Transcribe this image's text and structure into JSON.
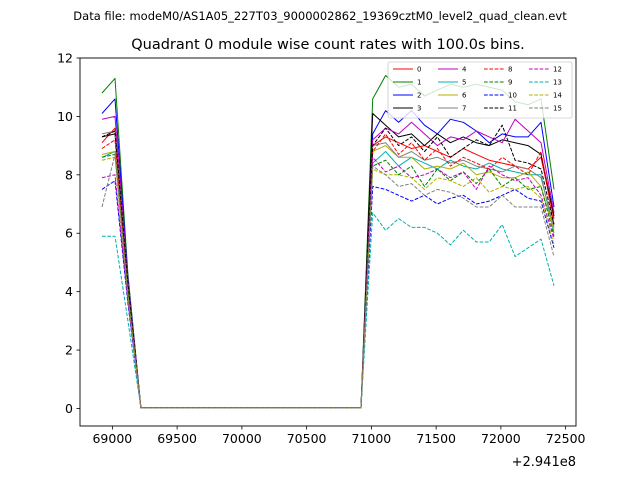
{
  "chart_data": {
    "type": "line",
    "suptitle": "Data file: modeM0/AS1A05_227T03_9000002862_19369cztM0_level2_quad_clean.evt",
    "title": "Quadrant 0 module wise count rates with 100.0s bins.",
    "xlabel": "",
    "ylabel": "",
    "offset_text": "+2.941e8",
    "xlim": [
      68750,
      72580
    ],
    "ylim": [
      -0.6,
      12
    ],
    "xticks": [
      69000,
      69500,
      70000,
      70500,
      71000,
      71500,
      72000,
      72500
    ],
    "xtick_labels": [
      "69000",
      "69500",
      "70000",
      "70500",
      "71000",
      "71500",
      "72000",
      "72500"
    ],
    "yticks": [
      0,
      2,
      4,
      6,
      8,
      10,
      12
    ],
    "ytick_labels": [
      "0",
      "2",
      "4",
      "6",
      "8",
      "10",
      "12"
    ],
    "legend_position": "top-right",
    "x": [
      68920,
      69020,
      69120,
      69220,
      69320,
      69420,
      69520,
      69620,
      69720,
      69820,
      69920,
      70020,
      70120,
      70220,
      70320,
      70420,
      70520,
      70620,
      70720,
      70820,
      70920,
      71010,
      71110,
      71210,
      71310,
      71410,
      71510,
      71610,
      71710,
      71810,
      71910,
      72010,
      72110,
      72210,
      72310,
      72410
    ],
    "series": [
      {
        "name": "0",
        "color": "#ff0000",
        "dash": "solid",
        "values": [
          9.1,
          9.6,
          4.2,
          0.02,
          0.02,
          0.02,
          0.02,
          0.02,
          0.02,
          0.02,
          0.02,
          0.02,
          0.02,
          0.02,
          0.02,
          0.02,
          0.02,
          0.02,
          0.02,
          0.02,
          0.02,
          9.0,
          9.3,
          9.1,
          8.9,
          9.0,
          8.8,
          8.6,
          8.9,
          8.7,
          8.5,
          8.4,
          8.3,
          8.2,
          8.6,
          6.5
        ]
      },
      {
        "name": "1",
        "color": "#008000",
        "dash": "solid",
        "values": [
          10.8,
          11.3,
          4.6,
          0.02,
          0.02,
          0.02,
          0.02,
          0.02,
          0.02,
          0.02,
          0.02,
          0.02,
          0.02,
          0.02,
          0.02,
          0.02,
          0.02,
          0.02,
          0.02,
          0.02,
          0.02,
          10.6,
          11.4,
          11.0,
          11.1,
          10.7,
          10.9,
          11.1,
          11.0,
          11.1,
          11.0,
          10.9,
          10.5,
          10.4,
          10.6,
          7.5
        ]
      },
      {
        "name": "2",
        "color": "#0000ff",
        "dash": "solid",
        "values": [
          10.1,
          10.6,
          4.5,
          0.02,
          0.02,
          0.02,
          0.02,
          0.02,
          0.02,
          0.02,
          0.02,
          0.02,
          0.02,
          0.02,
          0.02,
          0.02,
          0.02,
          0.02,
          0.02,
          0.02,
          0.02,
          9.4,
          10.2,
          9.8,
          10.2,
          9.7,
          9.4,
          9.9,
          9.8,
          9.5,
          9.1,
          9.4,
          9.3,
          9.3,
          9.8,
          6.9
        ]
      },
      {
        "name": "3",
        "color": "#000000",
        "dash": "solid",
        "values": [
          9.3,
          9.4,
          4.2,
          0.02,
          0.02,
          0.02,
          0.02,
          0.02,
          0.02,
          0.02,
          0.02,
          0.02,
          0.02,
          0.02,
          0.02,
          0.02,
          0.02,
          0.02,
          0.02,
          0.02,
          0.02,
          10.1,
          9.7,
          9.3,
          9.4,
          9.0,
          9.4,
          9.1,
          9.3,
          9.1,
          9.0,
          9.2,
          9.1,
          9.0,
          8.7,
          6.6
        ]
      },
      {
        "name": "4",
        "color": "#c000c0",
        "dash": "solid",
        "values": [
          9.9,
          10.0,
          4.4,
          0.02,
          0.02,
          0.02,
          0.02,
          0.02,
          0.02,
          0.02,
          0.02,
          0.02,
          0.02,
          0.02,
          0.02,
          0.02,
          0.02,
          0.02,
          0.02,
          0.02,
          0.02,
          9.2,
          9.6,
          9.4,
          9.8,
          9.4,
          9.0,
          9.3,
          9.2,
          9.5,
          9.3,
          9.1,
          9.9,
          9.5,
          9.1,
          6.7
        ]
      },
      {
        "name": "5",
        "color": "#00b0b0",
        "dash": "solid",
        "values": [
          8.6,
          8.8,
          4.0,
          0.02,
          0.02,
          0.02,
          0.02,
          0.02,
          0.02,
          0.02,
          0.02,
          0.02,
          0.02,
          0.02,
          0.02,
          0.02,
          0.02,
          0.02,
          0.02,
          0.02,
          0.02,
          8.4,
          8.8,
          8.3,
          8.6,
          8.4,
          8.2,
          8.5,
          8.3,
          8.2,
          8.4,
          8.2,
          8.1,
          8.0,
          8.0,
          6.0
        ]
      },
      {
        "name": "6",
        "color": "#b0b000",
        "dash": "solid",
        "values": [
          8.7,
          8.8,
          4.0,
          0.02,
          0.02,
          0.02,
          0.02,
          0.02,
          0.02,
          0.02,
          0.02,
          0.02,
          0.02,
          0.02,
          0.02,
          0.02,
          0.02,
          0.02,
          0.02,
          0.02,
          0.02,
          8.8,
          9.0,
          8.6,
          8.6,
          8.2,
          8.3,
          8.2,
          8.4,
          8.0,
          8.1,
          7.9,
          7.9,
          8.1,
          7.6,
          6.1
        ]
      },
      {
        "name": "7",
        "color": "#808080",
        "dash": "solid",
        "values": [
          9.4,
          9.5,
          4.3,
          0.02,
          0.02,
          0.02,
          0.02,
          0.02,
          0.02,
          0.02,
          0.02,
          0.02,
          0.02,
          0.02,
          0.02,
          0.02,
          0.02,
          0.02,
          0.02,
          0.02,
          0.02,
          9.0,
          9.1,
          8.6,
          8.8,
          8.5,
          8.6,
          8.4,
          8.5,
          8.3,
          8.2,
          8.1,
          8.3,
          8.2,
          7.9,
          6.2
        ]
      },
      {
        "name": "8",
        "color": "#ff0000",
        "dash": "dashed",
        "values": [
          8.9,
          9.2,
          4.1,
          0.02,
          0.02,
          0.02,
          0.02,
          0.02,
          0.02,
          0.02,
          0.02,
          0.02,
          0.02,
          0.02,
          0.02,
          0.02,
          0.02,
          0.02,
          0.02,
          0.02,
          0.02,
          8.8,
          9.4,
          8.7,
          9.1,
          8.5,
          8.9,
          8.3,
          8.6,
          8.4,
          8.2,
          8.6,
          8.3,
          8.0,
          8.8,
          6.3
        ]
      },
      {
        "name": "9",
        "color": "#008000",
        "dash": "dashed",
        "values": [
          8.6,
          8.7,
          4.0,
          0.02,
          0.02,
          0.02,
          0.02,
          0.02,
          0.02,
          0.02,
          0.02,
          0.02,
          0.02,
          0.02,
          0.02,
          0.02,
          0.02,
          0.02,
          0.02,
          0.02,
          0.02,
          8.3,
          8.5,
          8.0,
          8.3,
          7.6,
          8.2,
          7.8,
          8.1,
          7.7,
          8.2,
          7.6,
          7.9,
          7.5,
          7.6,
          5.9
        ]
      },
      {
        "name": "10",
        "color": "#0000ff",
        "dash": "dashed",
        "values": [
          7.5,
          7.8,
          3.6,
          0.02,
          0.02,
          0.02,
          0.02,
          0.02,
          0.02,
          0.02,
          0.02,
          0.02,
          0.02,
          0.02,
          0.02,
          0.02,
          0.02,
          0.02,
          0.02,
          0.02,
          0.02,
          7.6,
          7.5,
          7.3,
          7.1,
          7.3,
          7.0,
          7.2,
          7.3,
          7.0,
          7.1,
          7.3,
          7.5,
          7.2,
          7.1,
          5.5
        ]
      },
      {
        "name": "11",
        "color": "#000000",
        "dash": "dashed",
        "values": [
          9.3,
          9.5,
          4.3,
          0.02,
          0.02,
          0.02,
          0.02,
          0.02,
          0.02,
          0.02,
          0.02,
          0.02,
          0.02,
          0.02,
          0.02,
          0.02,
          0.02,
          0.02,
          0.02,
          0.02,
          0.02,
          9.0,
          9.6,
          9.0,
          9.3,
          8.8,
          9.3,
          8.6,
          8.9,
          9.2,
          9.0,
          9.7,
          8.5,
          8.4,
          8.2,
          6.3
        ]
      },
      {
        "name": "12",
        "color": "#c000c0",
        "dash": "dashed",
        "values": [
          7.9,
          8.0,
          3.7,
          0.02,
          0.02,
          0.02,
          0.02,
          0.02,
          0.02,
          0.02,
          0.02,
          0.02,
          0.02,
          0.02,
          0.02,
          0.02,
          0.02,
          0.02,
          0.02,
          0.02,
          0.02,
          8.6,
          8.1,
          8.3,
          7.9,
          8.0,
          8.2,
          7.9,
          8.1,
          7.5,
          8.3,
          8.0,
          7.8,
          7.9,
          7.3,
          5.8
        ]
      },
      {
        "name": "13",
        "color": "#00b0b0",
        "dash": "dashed",
        "values": [
          5.9,
          5.9,
          3.0,
          0.02,
          0.02,
          0.02,
          0.02,
          0.02,
          0.02,
          0.02,
          0.02,
          0.02,
          0.02,
          0.02,
          0.02,
          0.02,
          0.02,
          0.02,
          0.02,
          0.02,
          0.02,
          6.7,
          6.1,
          6.5,
          6.2,
          6.2,
          6.0,
          5.6,
          6.1,
          5.7,
          5.7,
          6.3,
          5.2,
          5.5,
          5.8,
          4.2
        ]
      },
      {
        "name": "14",
        "color": "#b0b000",
        "dash": "dashed",
        "values": [
          8.5,
          8.6,
          3.9,
          0.02,
          0.02,
          0.02,
          0.02,
          0.02,
          0.02,
          0.02,
          0.02,
          0.02,
          0.02,
          0.02,
          0.02,
          0.02,
          0.02,
          0.02,
          0.02,
          0.02,
          0.02,
          8.2,
          8.0,
          8.0,
          7.9,
          7.5,
          7.9,
          7.8,
          7.6,
          7.9,
          7.4,
          7.6,
          7.5,
          7.6,
          7.2,
          5.6
        ]
      },
      {
        "name": "15",
        "color": "#808080",
        "dash": "dashed",
        "values": [
          6.9,
          8.7,
          3.8,
          0.02,
          0.02,
          0.02,
          0.02,
          0.02,
          0.02,
          0.02,
          0.02,
          0.02,
          0.02,
          0.02,
          0.02,
          0.02,
          0.02,
          0.02,
          0.02,
          0.02,
          0.02,
          8.3,
          8.0,
          7.6,
          7.7,
          7.3,
          7.5,
          7.4,
          7.2,
          6.9,
          6.9,
          7.3,
          6.9,
          6.9,
          6.9,
          5.2
        ]
      }
    ]
  }
}
